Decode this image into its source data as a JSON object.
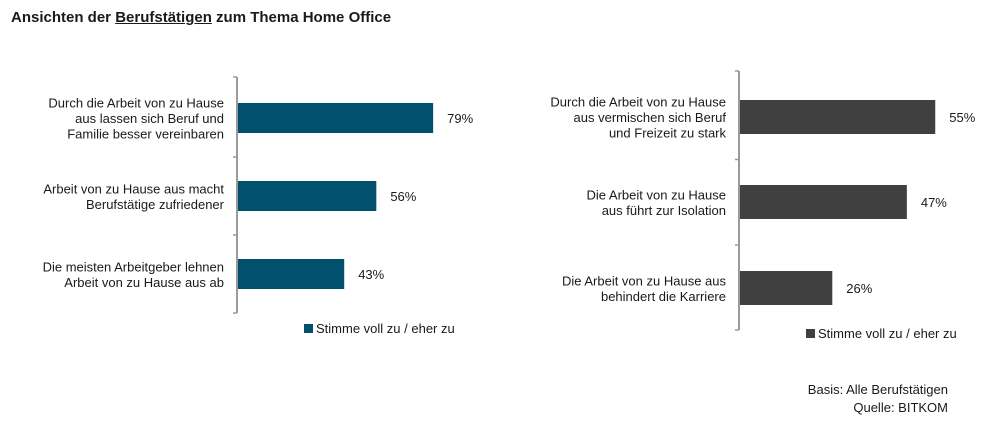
{
  "title": {
    "prefix": "Ansichten der ",
    "underlined": "Berufstätigen",
    "suffix": " zum Thema Home Office"
  },
  "chart_data": [
    {
      "type": "bar",
      "orientation": "horizontal",
      "categories": [
        [
          "Durch die Arbeit von zu Hause",
          "aus lassen sich Beruf und",
          "Familie besser vereinbaren"
        ],
        [
          "Arbeit von zu Hause aus macht",
          "Berufstätige zufriedener"
        ],
        [
          "Die meisten Arbeitgeber lehnen",
          "Arbeit von zu Hause aus ab"
        ]
      ],
      "series": [
        {
          "name": "Stimme voll zu / eher zu",
          "values": [
            79,
            56,
            43
          ],
          "data_labels": [
            "79%",
            "56%",
            "43%"
          ]
        }
      ],
      "xlim": [
        0,
        100
      ],
      "grid": false,
      "legend": "bottom",
      "color": "#00506e"
    },
    {
      "type": "bar",
      "orientation": "horizontal",
      "categories": [
        [
          "Durch die Arbeit von zu Hause",
          "aus vermischen sich Beruf",
          "und Freizeit zu stark"
        ],
        [
          "Die Arbeit von zu Hause",
          "aus führt zur Isolation"
        ],
        [
          "Die Arbeit von zu Hause aus",
          "behindert die Karriere"
        ]
      ],
      "series": [
        {
          "name": "Stimme voll zu / eher zu",
          "values": [
            55,
            47,
            26
          ],
          "data_labels": [
            "55%",
            "47%",
            "26%"
          ]
        }
      ],
      "xlim": [
        0,
        100
      ],
      "grid": false,
      "legend": "bottom",
      "color": "#404040"
    }
  ],
  "footer": {
    "basis": "Basis: Alle Berufstätigen",
    "source": "Quelle: BITKOM"
  }
}
